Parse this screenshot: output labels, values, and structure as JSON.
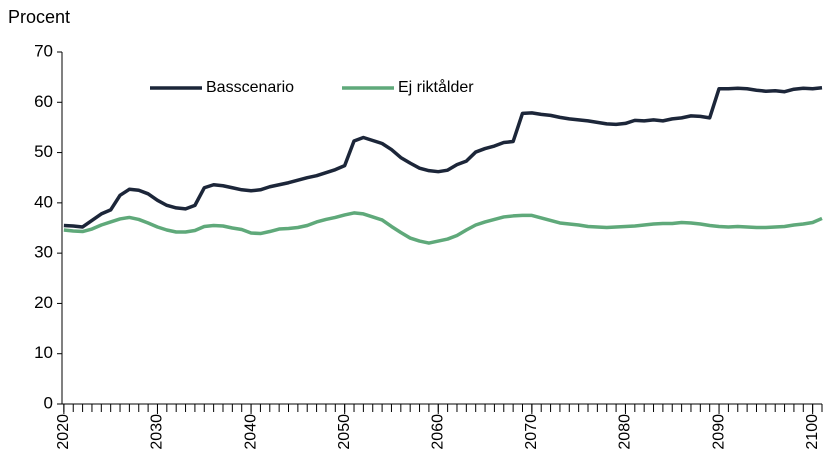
{
  "chart_data": {
    "type": "line",
    "y_label": "Procent",
    "x": [
      2020,
      2021,
      2022,
      2023,
      2024,
      2025,
      2026,
      2027,
      2028,
      2029,
      2030,
      2031,
      2032,
      2033,
      2034,
      2035,
      2036,
      2037,
      2038,
      2039,
      2040,
      2041,
      2042,
      2043,
      2044,
      2045,
      2046,
      2047,
      2048,
      2049,
      2050,
      2051,
      2052,
      2053,
      2054,
      2055,
      2056,
      2057,
      2058,
      2059,
      2060,
      2061,
      2062,
      2063,
      2064,
      2065,
      2066,
      2067,
      2068,
      2069,
      2070,
      2071,
      2072,
      2073,
      2074,
      2075,
      2076,
      2077,
      2078,
      2079,
      2080,
      2081,
      2082,
      2083,
      2084,
      2085,
      2086,
      2087,
      2088,
      2089,
      2090,
      2091,
      2092,
      2093,
      2094,
      2095,
      2096,
      2097,
      2098,
      2099,
      2100,
      2101
    ],
    "series": [
      {
        "name": "Basscenario",
        "color": "#1c2639",
        "values": [
          35.5,
          35.4,
          35.2,
          36.5,
          37.8,
          38.6,
          41.5,
          42.7,
          42.5,
          41.8,
          40.5,
          39.5,
          39.0,
          38.8,
          39.5,
          43.0,
          43.6,
          43.4,
          43.0,
          42.6,
          42.4,
          42.6,
          43.2,
          43.6,
          44.0,
          44.5,
          45.0,
          45.4,
          46.0,
          46.6,
          47.4,
          52.3,
          53.0,
          52.4,
          51.8,
          50.6,
          49.0,
          47.9,
          46.9,
          46.4,
          46.2,
          46.5,
          47.6,
          48.3,
          50.1,
          50.8,
          51.3,
          52.0,
          52.2,
          57.8,
          57.9,
          57.6,
          57.4,
          57.0,
          56.7,
          56.5,
          56.3,
          56.0,
          55.7,
          55.6,
          55.8,
          56.4,
          56.3,
          56.5,
          56.3,
          56.7,
          56.9,
          57.3,
          57.2,
          56.9,
          62.7,
          62.7,
          62.8,
          62.7,
          62.4,
          62.2,
          62.3,
          62.1,
          62.6,
          62.8,
          62.7,
          62.9
        ]
      },
      {
        "name": "Ej riktålder",
        "color": "#5fa97a",
        "values": [
          34.6,
          34.4,
          34.3,
          34.8,
          35.6,
          36.2,
          36.8,
          37.1,
          36.7,
          36.0,
          35.2,
          34.6,
          34.2,
          34.2,
          34.5,
          35.3,
          35.5,
          35.4,
          35.0,
          34.7,
          34.0,
          33.9,
          34.3,
          34.8,
          34.9,
          35.1,
          35.5,
          36.2,
          36.7,
          37.1,
          37.6,
          38.0,
          37.8,
          37.2,
          36.6,
          35.3,
          34.1,
          33.0,
          32.4,
          32.0,
          32.4,
          32.8,
          33.5,
          34.6,
          35.6,
          36.2,
          36.7,
          37.2,
          37.4,
          37.5,
          37.5,
          37.0,
          36.5,
          36.0,
          35.8,
          35.6,
          35.3,
          35.2,
          35.1,
          35.2,
          35.3,
          35.4,
          35.6,
          35.8,
          35.9,
          35.9,
          36.1,
          36.0,
          35.8,
          35.5,
          35.3,
          35.2,
          35.3,
          35.2,
          35.1,
          35.1,
          35.2,
          35.3,
          35.6,
          35.8,
          36.1,
          36.9
        ]
      }
    ],
    "xlim": [
      2019.8,
      2101
    ],
    "xticks": [
      2020,
      2030,
      2040,
      2050,
      2060,
      2070,
      2080,
      2090,
      2100
    ],
    "ylim": [
      0,
      70
    ],
    "yticks": [
      0,
      10,
      20,
      30,
      40,
      50,
      60,
      70
    ],
    "grid": false,
    "legend": "top"
  }
}
